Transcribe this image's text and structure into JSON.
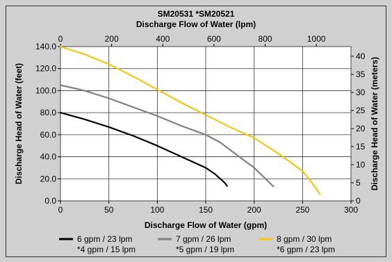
{
  "chart_data": {
    "type": "line",
    "title_line1": "SM20531   *SM20521",
    "title_line2": "Discharge Flow of Water (lpm)",
    "xlabel": "Discharge Flow of Water (gpm)",
    "ylabel_left": "Discharge Head of Water (feet)",
    "ylabel_right": "Discharge Head of Water (meters)",
    "x_bottom": {
      "min": 0,
      "max": 300,
      "ticks": [
        0,
        50,
        100,
        150,
        200,
        250,
        300
      ]
    },
    "x_top": {
      "min": 0,
      "max": 1135.6,
      "ticks": [
        0,
        200,
        400,
        600,
        800,
        1000
      ]
    },
    "y_left": {
      "min": 0,
      "max": 140,
      "ticks": [
        "0.0",
        "20.0",
        "40.0",
        "60.0",
        "80.0",
        "100.0",
        "120.0",
        "140.0"
      ]
    },
    "y_right": {
      "min": 0,
      "max": 42.67,
      "ticks": [
        0,
        5,
        10,
        15,
        20,
        25,
        30,
        35,
        40
      ]
    },
    "grid": true,
    "legend_position": "bottom",
    "series": [
      {
        "name": "6 gpm / 23 lpm",
        "name2": "*4 gpm / 15 lpm",
        "color": "#000000",
        "x": [
          0,
          25,
          50,
          75,
          100,
          125,
          150,
          160,
          170,
          172
        ],
        "y": [
          80,
          74,
          67,
          59,
          50,
          40,
          30,
          24,
          16,
          13.5
        ]
      },
      {
        "name": "7 gpm / 26 lpm",
        "name2": "*5 gpm / 19 lpm",
        "color": "#808080",
        "x": [
          0,
          25,
          50,
          75,
          100,
          125,
          150,
          165,
          180,
          200,
          220
        ],
        "y": [
          105,
          100,
          93,
          85,
          77,
          68,
          60,
          53,
          43,
          30,
          13
        ]
      },
      {
        "name": "8 gpm / 30 lpm",
        "name2": "*6 gpm / 23 lpm",
        "color": "#f2c414",
        "x": [
          0,
          25,
          50,
          75,
          100,
          125,
          150,
          175,
          200,
          225,
          250,
          260,
          268
        ],
        "y": [
          140,
          133,
          124,
          113,
          101,
          89,
          78,
          67,
          57,
          43,
          27,
          16,
          6
        ]
      }
    ]
  }
}
